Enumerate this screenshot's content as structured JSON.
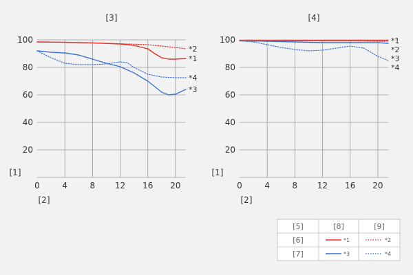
{
  "chart_data": [
    {
      "type": "line",
      "title": "[3]",
      "xlabel": "[2]",
      "ylabel": "[1]",
      "xlim": [
        0,
        21.5
      ],
      "ylim": [
        0,
        100
      ],
      "xticks": [
        0,
        4,
        8,
        12,
        16,
        20
      ],
      "yticks": [
        20,
        40,
        60,
        80,
        100
      ],
      "grid": true,
      "series": [
        {
          "name": "*1",
          "color": "#e8302a",
          "style": "solid",
          "x": [
            0,
            4,
            8,
            12,
            14,
            16,
            17,
            18,
            19,
            20,
            21.5
          ],
          "y": [
            98.5,
            98.3,
            97.8,
            97,
            96,
            93.5,
            90,
            87,
            86,
            86,
            86.5
          ]
        },
        {
          "name": "*2",
          "color": "#e8302a",
          "style": "dotted",
          "x": [
            0,
            4,
            8,
            12,
            16,
            18,
            20,
            21.5
          ],
          "y": [
            98.5,
            98.2,
            97.8,
            97.2,
            96.5,
            95.5,
            94.5,
            93.5
          ]
        },
        {
          "name": "*3",
          "color": "#3a73d6",
          "style": "solid",
          "x": [
            0,
            2,
            4,
            6,
            8,
            10,
            12,
            14,
            15,
            16,
            17,
            18,
            19,
            20,
            21.5
          ],
          "y": [
            92,
            91,
            90.5,
            89,
            86,
            83,
            80.5,
            76,
            73,
            70,
            66,
            62,
            60,
            60.5,
            64
          ]
        },
        {
          "name": "*4",
          "color": "#3a73d6",
          "style": "dotted",
          "x": [
            0,
            2,
            4,
            6,
            8,
            10,
            12,
            13,
            14,
            16,
            18,
            20,
            21.5
          ],
          "y": [
            92,
            87,
            83,
            82,
            82,
            82.5,
            84,
            83.5,
            80,
            75,
            73,
            72.5,
            72.5
          ]
        }
      ]
    },
    {
      "type": "line",
      "title": "[4]",
      "xlabel": "[2]",
      "ylabel": "[1]",
      "xlim": [
        0,
        21.5
      ],
      "ylim": [
        0,
        100
      ],
      "xticks": [
        0,
        4,
        8,
        12,
        16,
        20
      ],
      "yticks": [
        20,
        40,
        60,
        80,
        100
      ],
      "grid": true,
      "series": [
        {
          "name": "*1",
          "color": "#e8302a",
          "style": "solid",
          "x": [
            0,
            4,
            8,
            12,
            16,
            20,
            21.5
          ],
          "y": [
            99.5,
            99.5,
            99.5,
            99.5,
            99.5,
            99.5,
            99.5
          ]
        },
        {
          "name": "*2",
          "color": "#e8302a",
          "style": "dotted",
          "x": [
            0,
            4,
            8,
            12,
            16,
            20,
            21.5
          ],
          "y": [
            99.4,
            99.4,
            99.3,
            99.2,
            99.2,
            99,
            99
          ]
        },
        {
          "name": "*3",
          "color": "#3a73d6",
          "style": "solid",
          "x": [
            0,
            4,
            8,
            12,
            16,
            20,
            21.5
          ],
          "y": [
            99.3,
            99,
            98.5,
            98,
            98,
            98,
            97.5
          ]
        },
        {
          "name": "*4",
          "color": "#3a73d6",
          "style": "dotted",
          "x": [
            0,
            2,
            4,
            6,
            8,
            10,
            12,
            14,
            16,
            18,
            20,
            21.5
          ],
          "y": [
            99.3,
            98.5,
            96.5,
            94.5,
            93,
            92,
            92.5,
            94,
            95.5,
            94,
            88,
            85
          ]
        }
      ]
    }
  ],
  "legend": {
    "header": [
      "[5]",
      "[8]",
      "[9]"
    ],
    "rows": [
      {
        "label": "[6]",
        "solid": "*1",
        "dotted": "*2",
        "color": "#e8302a"
      },
      {
        "label": "[7]",
        "solid": "*3",
        "dotted": "*4",
        "color": "#3a73d6"
      }
    ]
  }
}
